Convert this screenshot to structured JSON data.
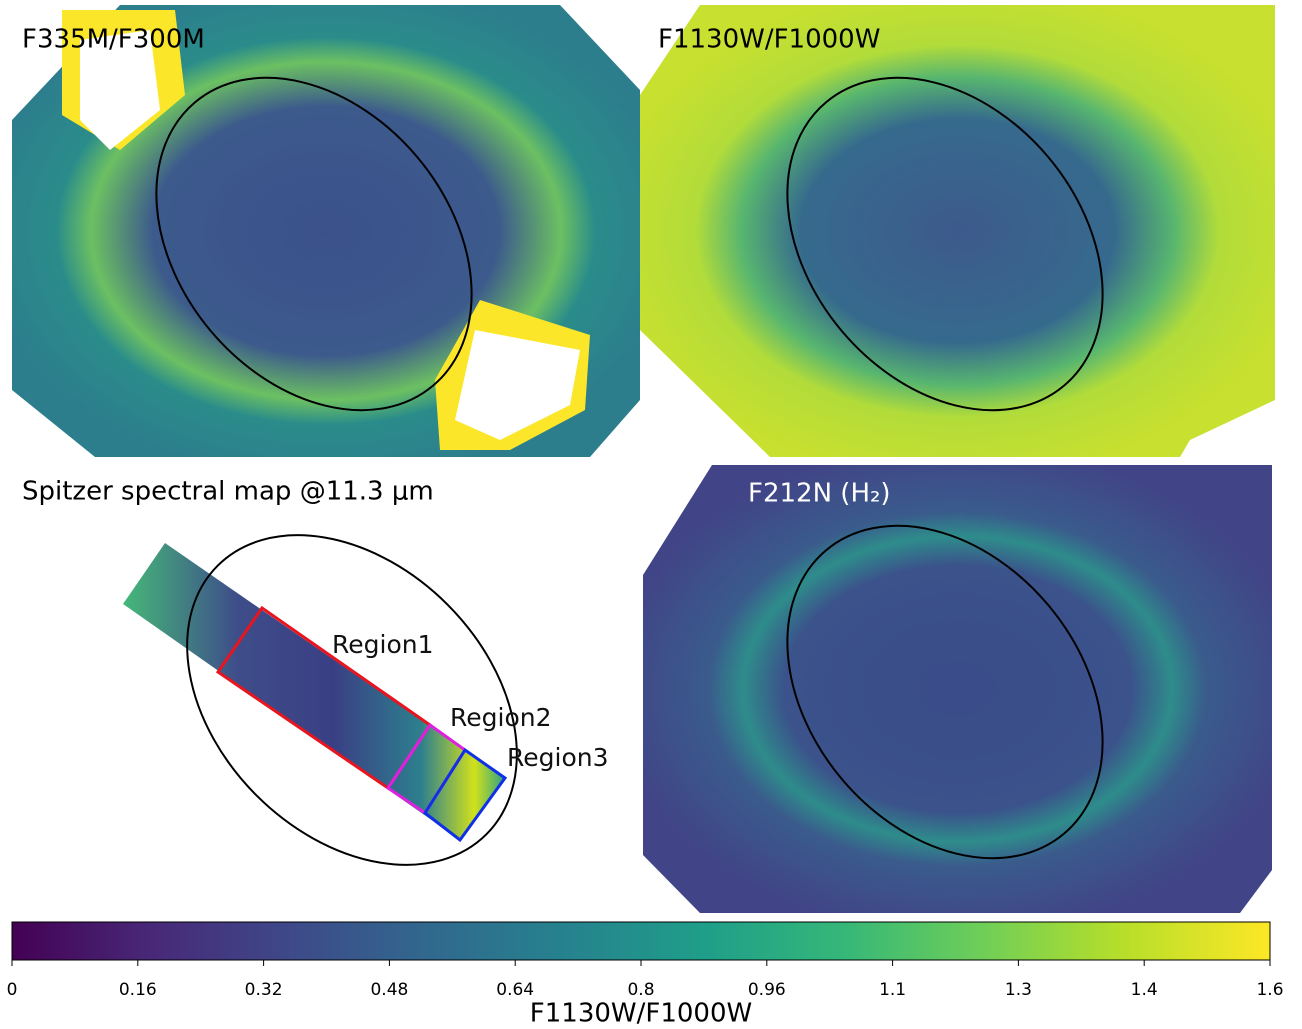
{
  "panels": [
    {
      "title": "F335M/F300M"
    },
    {
      "title": "F1130W/F1000W"
    },
    {
      "title": "Spitzer spectral map @11.3 μm",
      "regions": [
        "Region1",
        "Region2",
        "Region3"
      ]
    },
    {
      "title": "F212N (H₂)"
    }
  ],
  "colorbar": {
    "label": "F1130W/F1000W",
    "lim": [
      0,
      1.6
    ],
    "ticks": [
      0,
      0.16,
      0.32,
      0.48,
      0.64,
      0.8,
      0.96,
      {
        "value": 1.12,
        "label": "1.1"
      },
      {
        "value": 1.28,
        "label": "1.3"
      },
      {
        "value": 1.44,
        "label": "1.4"
      },
      1.6
    ]
  }
}
